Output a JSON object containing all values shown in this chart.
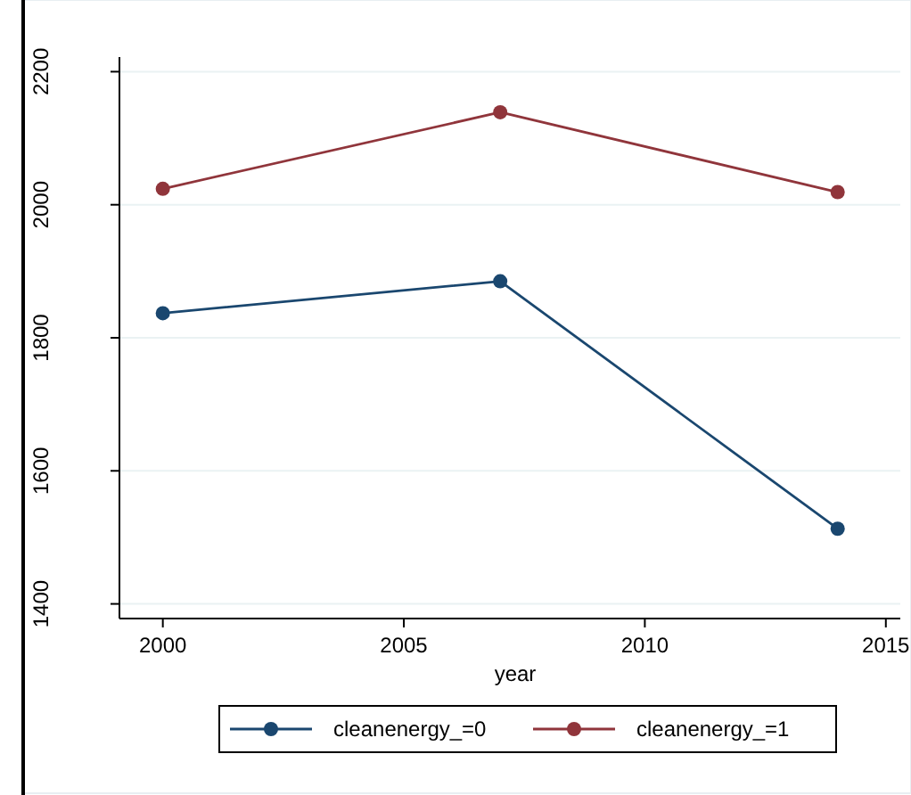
{
  "chart_data": {
    "type": "line",
    "xlabel": "year",
    "x": [
      2000,
      2007,
      2014
    ],
    "series": [
      {
        "name": "cleanenergy_=0",
        "color": "#1a476f",
        "values": [
          1837,
          1885,
          1513
        ]
      },
      {
        "name": "cleanenergy_=1",
        "color": "#90353b",
        "values": [
          2024,
          2139,
          2019
        ]
      }
    ],
    "xlim": [
      1999.1,
      2015.3
    ],
    "xticks": [
      2000,
      2005,
      2010,
      2015
    ],
    "ylim": [
      1378,
      2222
    ],
    "yticks": [
      1400,
      1600,
      1800,
      2000,
      2200
    ],
    "grid": "y",
    "legend": "bottom",
    "marker": "circle",
    "line_style": "solid"
  }
}
